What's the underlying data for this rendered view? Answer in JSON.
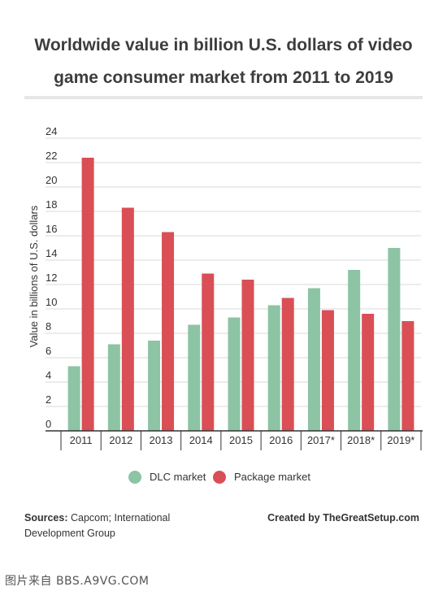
{
  "chart_data": {
    "type": "bar",
    "title": "Worldwide value in billion U.S. dollars of video game consumer market from 2011 to 2019",
    "xlabel": "",
    "ylabel": "Value in billions of U.S. dollars",
    "ylim": [
      0,
      24
    ],
    "yticks": [
      0,
      2,
      4,
      6,
      8,
      10,
      12,
      14,
      16,
      18,
      20,
      22,
      24
    ],
    "grid": true,
    "legend_position": "bottom",
    "categories": [
      "2011",
      "2012",
      "2013",
      "2014",
      "2015",
      "2016",
      "2017*",
      "2018*",
      "2019*"
    ],
    "series": [
      {
        "name": "DLC market",
        "color": "#8cc4a4",
        "values": [
          5.3,
          7.1,
          7.4,
          8.7,
          9.3,
          10.3,
          11.7,
          13.2,
          15.0
        ]
      },
      {
        "name": "Package market",
        "color": "#d94f55",
        "values": [
          22.4,
          18.3,
          16.3,
          12.9,
          12.4,
          10.9,
          9.9,
          9.6,
          9.0
        ]
      }
    ]
  },
  "footer": {
    "sources_label": "Sources:",
    "sources_text": "Capcom; International Development Group",
    "credit": "Created by TheGreatSetup.com"
  },
  "watermark": "图片来自 BBS.A9VG.COM"
}
